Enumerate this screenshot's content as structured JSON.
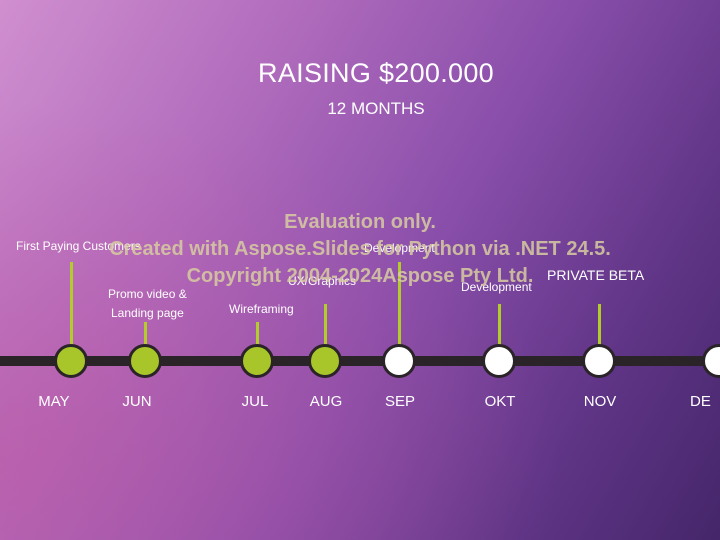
{
  "slide": {
    "title": "RAISING $200.000",
    "subtitle": "12 MONTHS"
  },
  "timeline": {
    "months": [
      "MAY",
      "JUN",
      "JUL",
      "AUG",
      "SEP",
      "OKT",
      "NOV",
      "DE"
    ],
    "annotations": {
      "may": "First Paying Customers",
      "jun_line1": "Promo video &",
      "jun_line2": "Landing page",
      "jul": "Wireframing",
      "aug": "UX/Graphics",
      "sep": "Development",
      "okt": "Development",
      "nov": "PRIVATE BETA"
    },
    "colors": {
      "filled": "#a8c52a",
      "empty": "#ffffff",
      "track": "#2a2328",
      "stem": "#b2cc2a"
    }
  },
  "watermark": {
    "line1": "Evaluation only.",
    "line2": "Created with Aspose.Slides for Python via .NET 24.5.",
    "line3": "Copyright 2004-2024Aspose Pty Ltd."
  }
}
